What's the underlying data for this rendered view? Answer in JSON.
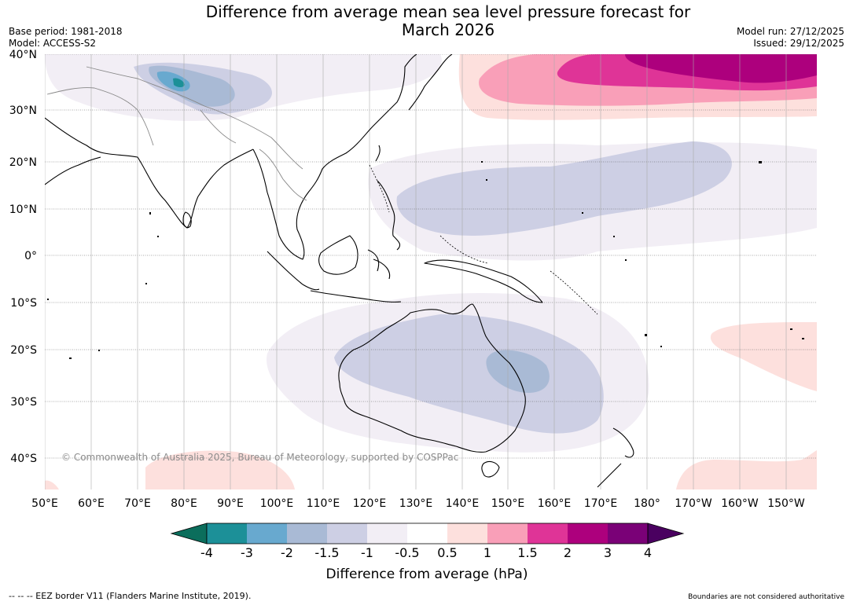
{
  "title_line1": "Difference from average mean sea level pressure forecast for",
  "title_line2": "March 2026",
  "base_period": "Base period: 1981-2018",
  "model": "Model: ACCESS-S2",
  "model_run": "Model run: 27/12/2025",
  "issued": "Issued: 29/12/2025",
  "copyright": "© Commonwealth of Australia 2025, Bureau of Meteorology, supported by COSPPac",
  "latitudes": [
    "40°N",
    "30°N",
    "20°N",
    "10°N",
    "0°",
    "10°S",
    "20°S",
    "30°S",
    "40°S"
  ],
  "longitudes": [
    "50°E",
    "60°E",
    "70°E",
    "80°E",
    "90°E",
    "100°E",
    "110°E",
    "120°E",
    "130°E",
    "140°E",
    "150°E",
    "160°E",
    "170°E",
    "180°",
    "170°W",
    "160°W",
    "150°W"
  ],
  "colorbar": {
    "title": "Difference from average (hPa)",
    "ticks": [
      "-4",
      "-3",
      "-2",
      "-1.5",
      "-1",
      "-0.5",
      "0.5",
      "1",
      "1.5",
      "2",
      "3",
      "4"
    ],
    "colors": [
      "#0b6e5c",
      "#1c9098",
      "#68a9cf",
      "#a9bad5",
      "#cdcfe4",
      "#f2eef5",
      "#ffffff",
      "#fde0dd",
      "#f99fb8",
      "#df3497",
      "#ad007d",
      "#7a0177",
      "#4a0060"
    ]
  },
  "footer_left": "--  --  -- EEZ border V11 (Flanders Marine Institute, 2019).",
  "footer_right": "Boundaries are not considered authoritative"
}
